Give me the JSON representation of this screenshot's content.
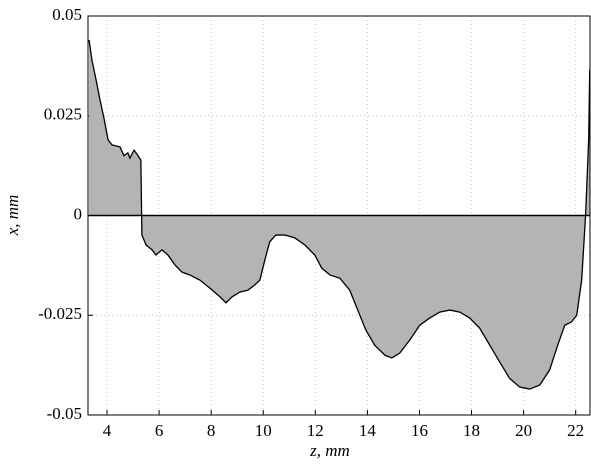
{
  "chart_data": {
    "type": "area",
    "xlabel": "z, mm",
    "ylabel": "x, mm",
    "x": [
      3.31,
      3.42,
      3.58,
      3.73,
      3.88,
      4.04,
      4.19,
      4.5,
      4.65,
      4.8,
      4.88,
      5.04,
      5.19,
      5.3,
      5.34,
      5.5,
      5.73,
      5.88,
      6.11,
      6.34,
      6.61,
      6.88,
      7.18,
      7.57,
      7.95,
      8.34,
      8.57,
      8.8,
      9.1,
      9.41,
      9.68,
      9.87,
      10.06,
      10.25,
      10.48,
      10.83,
      11.21,
      11.6,
      11.98,
      12.25,
      12.56,
      12.94,
      13.32,
      13.63,
      13.94,
      14.28,
      14.67,
      14.94,
      15.24,
      15.63,
      16.01,
      16.39,
      16.78,
      17.16,
      17.55,
      17.93,
      18.31,
      18.7,
      19.08,
      19.46,
      19.85,
      20.23,
      20.62,
      21.0,
      21.31,
      21.58,
      21.84,
      22.04,
      22.23,
      22.38,
      22.5,
      22.54
    ],
    "values": [
      0.044,
      0.039,
      0.034,
      0.029,
      0.0245,
      0.019,
      0.0177,
      0.0172,
      0.015,
      0.0157,
      0.0144,
      0.0164,
      0.015,
      0.0139,
      -0.0049,
      -0.0074,
      -0.0086,
      -0.0099,
      -0.0086,
      -0.0099,
      -0.0124,
      -0.0142,
      -0.0149,
      -0.0162,
      -0.0182,
      -0.0204,
      -0.0219,
      -0.0204,
      -0.0192,
      -0.0187,
      -0.0174,
      -0.0162,
      -0.0112,
      -0.0066,
      -0.0049,
      -0.0049,
      -0.0056,
      -0.0074,
      -0.0099,
      -0.0132,
      -0.0149,
      -0.0157,
      -0.0187,
      -0.0237,
      -0.0287,
      -0.0325,
      -0.035,
      -0.0357,
      -0.0345,
      -0.0312,
      -0.0275,
      -0.0257,
      -0.0242,
      -0.0237,
      -0.0242,
      -0.0257,
      -0.0282,
      -0.0325,
      -0.0367,
      -0.0408,
      -0.043,
      -0.0435,
      -0.0425,
      -0.0387,
      -0.0325,
      -0.0275,
      -0.0267,
      -0.025,
      -0.0162,
      0,
      0.019,
      0.0365
    ],
    "color": "#b4b4b4",
    "line_color": "#000000",
    "xlim": [
      3.27,
      22.55
    ],
    "ylim": [
      -0.05,
      0.05
    ],
    "xticks": [
      4,
      6,
      8,
      10,
      12,
      14,
      16,
      18,
      20,
      22
    ],
    "yticks": [
      -0.05,
      -0.025,
      0,
      0.025,
      0.05
    ],
    "grid": true
  }
}
